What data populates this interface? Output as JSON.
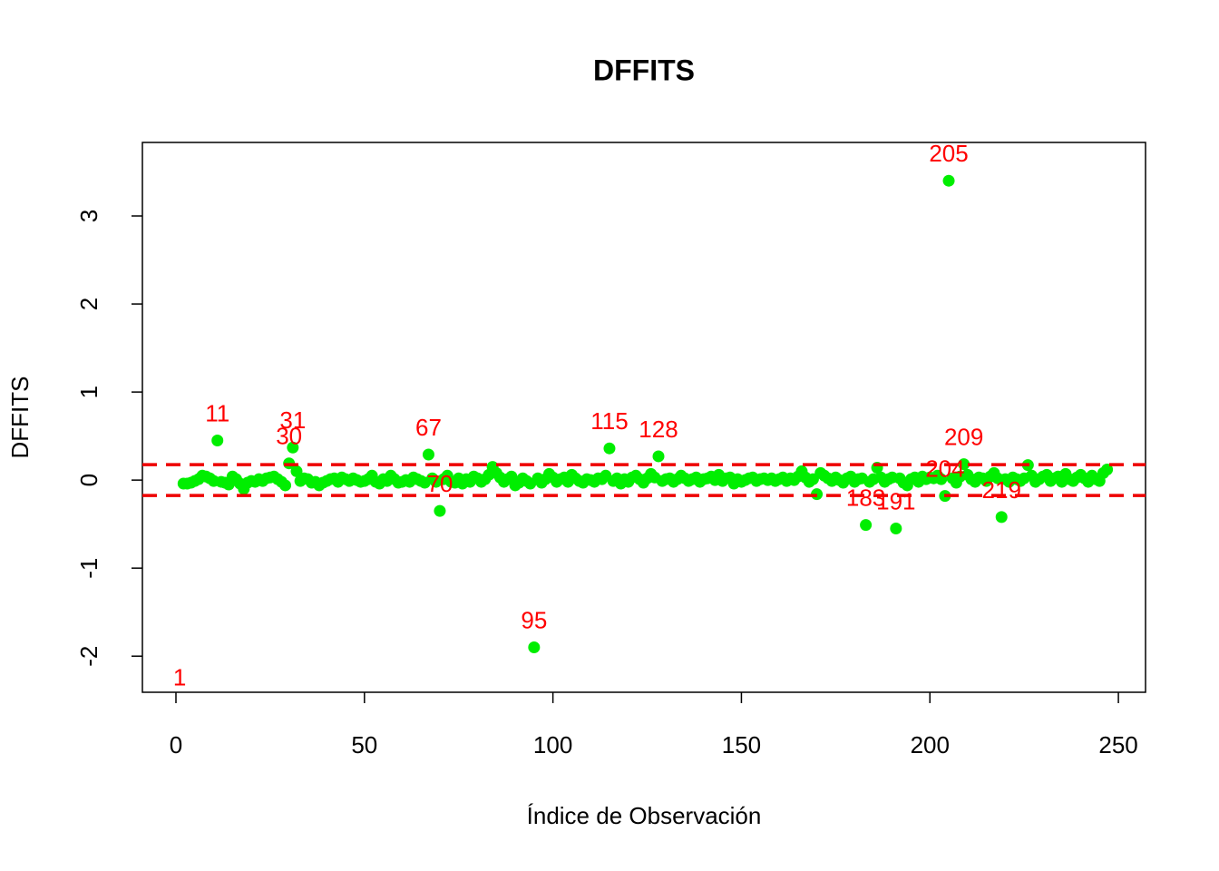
{
  "chart_data": {
    "type": "scatter",
    "title": "DFFITS",
    "xlabel": "Índice de Observación",
    "ylabel": "DFFITS",
    "x": [
      1,
      2,
      3,
      4,
      5,
      6,
      7,
      8,
      9,
      10,
      11,
      12,
      13,
      14,
      15,
      16,
      17,
      18,
      19,
      20,
      21,
      22,
      23,
      24,
      25,
      26,
      27,
      28,
      29,
      30,
      31,
      32,
      33,
      34,
      35,
      36,
      37,
      38,
      39,
      40,
      41,
      42,
      43,
      44,
      45,
      46,
      47,
      48,
      49,
      50,
      51,
      52,
      53,
      54,
      55,
      56,
      57,
      58,
      59,
      60,
      61,
      62,
      63,
      64,
      65,
      66,
      67,
      68,
      69,
      70,
      71,
      72,
      73,
      74,
      75,
      76,
      77,
      78,
      79,
      80,
      81,
      82,
      83,
      84,
      85,
      86,
      87,
      88,
      89,
      90,
      91,
      92,
      93,
      94,
      95,
      96,
      97,
      98,
      99,
      100,
      101,
      102,
      103,
      104,
      105,
      106,
      107,
      108,
      109,
      110,
      111,
      112,
      113,
      114,
      115,
      116,
      117,
      118,
      119,
      120,
      121,
      122,
      123,
      124,
      125,
      126,
      127,
      128,
      129,
      130,
      131,
      132,
      133,
      134,
      135,
      136,
      137,
      138,
      139,
      140,
      141,
      142,
      143,
      144,
      145,
      146,
      147,
      148,
      149,
      150,
      151,
      152,
      153,
      154,
      155,
      156,
      157,
      158,
      159,
      160,
      161,
      162,
      163,
      164,
      165,
      166,
      167,
      168,
      169,
      170,
      171,
      172,
      173,
      174,
      175,
      176,
      177,
      178,
      179,
      180,
      181,
      182,
      183,
      184,
      185,
      186,
      187,
      188,
      189,
      190,
      191,
      192,
      193,
      194,
      195,
      196,
      197,
      198,
      199,
      200,
      201,
      202,
      203,
      204,
      205,
      206,
      207,
      208,
      209,
      210,
      211,
      212,
      213,
      214,
      215,
      216,
      217,
      218,
      219,
      220,
      221,
      222,
      223,
      224,
      225,
      226,
      227,
      228,
      229,
      230,
      231,
      232,
      233,
      234,
      235,
      236,
      237,
      238,
      239,
      240,
      241,
      242,
      243,
      244,
      245,
      246,
      247
    ],
    "values": [
      -2.55,
      -0.04,
      -0.04,
      -0.03,
      -0.01,
      0.01,
      0.05,
      0.04,
      0.02,
      -0.01,
      0.45,
      -0.02,
      -0.03,
      -0.05,
      0.04,
      0.01,
      -0.04,
      -0.1,
      -0.03,
      -0.01,
      -0.02,
      0.01,
      -0.01,
      0.02,
      0.03,
      0.04,
      0.01,
      -0.02,
      -0.06,
      0.19,
      0.37,
      0.1,
      -0.01,
      0.02,
      0.01,
      -0.03,
      -0.02,
      -0.06,
      -0.03,
      -0.01,
      0.01,
      0.02,
      -0.02,
      0.03,
      0.01,
      -0.01,
      0.02,
      0,
      -0.02,
      -0.01,
      0.01,
      0.05,
      -0.02,
      -0.04,
      0.01,
      -0.01,
      0.05,
      0.01,
      -0.03,
      -0.02,
      0,
      -0.02,
      0.03,
      0.01,
      -0.01,
      -0.03,
      0.29,
      0.02,
      -0.02,
      -0.35,
      0.01,
      0.05,
      -0.02,
      -0.03,
      0.02,
      -0.04,
      0.01,
      -0.02,
      0.04,
      0.02,
      -0.02,
      0.01,
      0.06,
      0.15,
      0.08,
      0.03,
      -0.02,
      0.01,
      0.04,
      -0.06,
      -0.03,
      0.02,
      -0.01,
      -0.04,
      -1.9,
      0.02,
      -0.03,
      0.01,
      0.07,
      0.03,
      -0.02,
      0.01,
      0.03,
      -0.02,
      0.06,
      0.02,
      -0.01,
      -0.03,
      0.01,
      0,
      -0.02,
      0.02,
      0.01,
      0.05,
      0.36,
      -0.01,
      0.02,
      -0.04,
      0.01,
      -0.02,
      0.03,
      0.05,
      0.01,
      -0.03,
      0.02,
      0.07,
      0.03,
      0.27,
      -0.01,
      0.01,
      0.02,
      -0.02,
      0.01,
      0.05,
      0.02,
      -0.01,
      0.01,
      0.03,
      -0.02,
      0.01,
      0.02,
      0.04,
      0,
      0.06,
      -0.01,
      0.02,
      0.03,
      -0.04,
      0.01,
      -0.02,
      0,
      0.02,
      0.03,
      -0.01,
      0.01,
      0.02,
      0,
      0.02,
      -0.01,
      0.01,
      0.03,
      -0.01,
      0.02,
      0,
      0.04,
      0.1,
      0.03,
      -0.02,
      0.01,
      -0.16,
      0.08,
      0.05,
      0.02,
      -0.01,
      0.03,
      0,
      -0.03,
      0.02,
      0.04,
      -0.02,
      0.01,
      0.02,
      -0.51,
      -0.02,
      0.01,
      0.14,
      0.03,
      -0.02,
      0.01,
      0.03,
      -0.55,
      0.02,
      -0.03,
      -0.06,
      0.01,
      0.03,
      -0.02,
      0.04,
      0.01,
      0.03,
      0.02,
      0.05,
      0.01,
      -0.18,
      3.4,
      0.02,
      -0.03,
      0.04,
      0.18,
      0.06,
      0.01,
      -0.02,
      0.03,
      0.02,
      -0.01,
      0.04,
      0.08,
      0.02,
      -0.42,
      0.01,
      -0.02,
      0.03,
      0.01,
      -0.01,
      0.02,
      0.17,
      0.05,
      -0.02,
      0.01,
      0.04,
      0.06,
      -0.01,
      0.02,
      0.04,
      -0.02,
      0.07,
      0.01,
      -0.01,
      0.03,
      0.06,
      0.02,
      -0.02,
      0.05,
      0.01,
      -0.01,
      0.08,
      0.12
    ],
    "color": "#00ee00",
    "labeled_points": [
      1,
      11,
      30,
      31,
      67,
      70,
      95,
      115,
      128,
      183,
      191,
      204,
      205,
      209,
      219
    ],
    "label_color": "#ff0000",
    "hlines": [
      0.175,
      -0.175
    ],
    "hline_color": "#ee0000",
    "xlim": [
      -8.9,
      257.2
    ],
    "ylim": [
      -2.41,
      3.835
    ],
    "xticks": [
      0,
      50,
      100,
      150,
      200,
      250
    ],
    "yticks": [
      -2,
      -1,
      0,
      1,
      2,
      3
    ]
  }
}
